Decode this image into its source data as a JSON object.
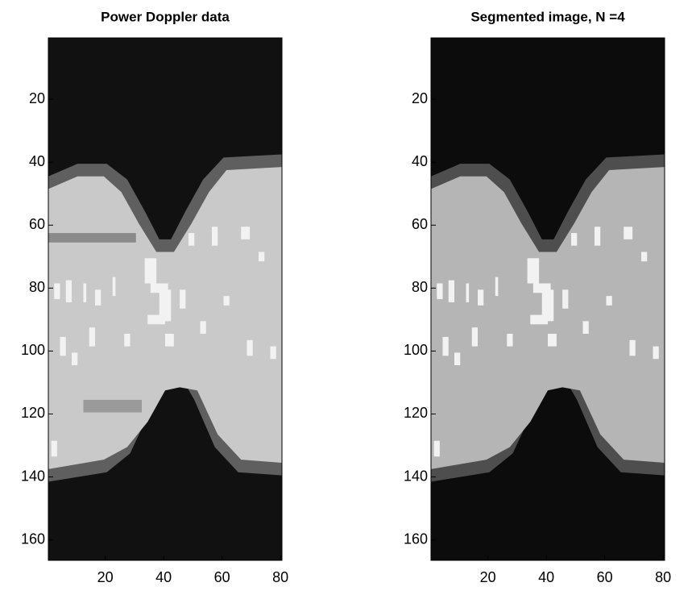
{
  "chart_data": [
    {
      "type": "image",
      "title": "Power Doppler data",
      "xlim": [
        0.5,
        80.5
      ],
      "ylim": [
        0.5,
        166.5
      ],
      "xticks": [
        20,
        40,
        60,
        80
      ],
      "yticks": [
        20,
        40,
        60,
        80,
        100,
        120,
        140,
        160
      ]
    },
    {
      "type": "image",
      "title": "Segmented image, N =4",
      "xlim": [
        0.5,
        80.5
      ],
      "ylim": [
        0.5,
        166.5
      ],
      "xticks": [
        20,
        40,
        60,
        80
      ],
      "yticks": [
        20,
        40,
        60,
        80,
        100,
        120,
        140,
        160
      ]
    }
  ]
}
